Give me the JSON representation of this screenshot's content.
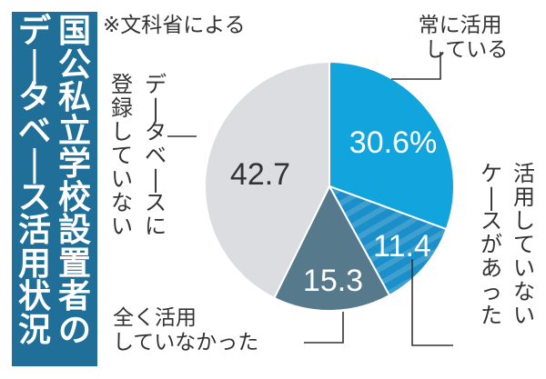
{
  "title": {
    "col1": "国公私立学校設置者の",
    "col2": "データベース活用状況",
    "full": "国公私立学校設置者のデータベース活用状況"
  },
  "source_note": "※文科省による",
  "labels": {
    "always_use_line1": "常に活用",
    "always_use_line2": "している",
    "some_unused": "活用していないケースがあった",
    "some_unused_col1": "活用していない",
    "some_unused_col2": "ケースがあった",
    "never_used_line1": "全く活用",
    "never_used_line2": "していなかった",
    "not_registered_col1": "データベースに",
    "not_registered_col2": "登録していない"
  },
  "values": {
    "always_use": "30.6%",
    "some_unused": "11.4",
    "never_used": "15.3",
    "not_registered": "42.7"
  },
  "colors": {
    "title_bg": "#1f6f99",
    "always_use": "#12a5dd",
    "some_unused": "#1a8fc9",
    "some_unused_stripe": "#3fa0cf",
    "never_used": "#567a8c",
    "not_registered": "#dcdde0"
  },
  "chart_data": {
    "type": "pie",
    "title": "国公私立学校設置者のデータベース活用状況",
    "subtitle": "※文科省による",
    "unit": "%",
    "categories": [
      "常に活用している",
      "活用していないケースがあった",
      "全く活用していなかった",
      "データベースに登録していない"
    ],
    "values": [
      30.6,
      11.4,
      15.3,
      42.7
    ],
    "start_angle": "12 o'clock",
    "direction": "clockwise",
    "legend": "none (callout labels)"
  }
}
